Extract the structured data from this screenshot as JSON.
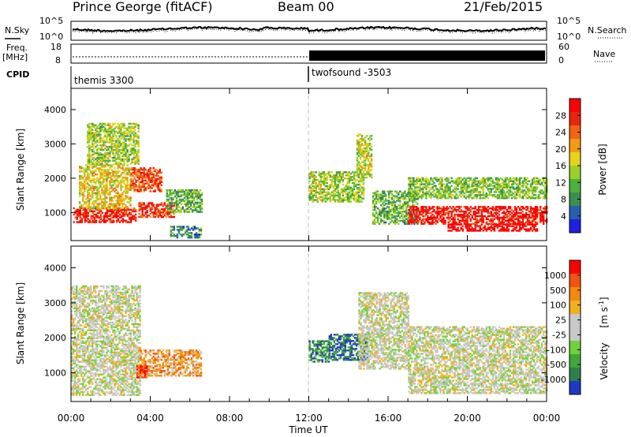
{
  "header": {
    "station": "Prince George (fitACF)",
    "beam": "Beam 00",
    "date": "21/Feb/2015"
  },
  "top_panels": {
    "nsky_label": "N.Sky",
    "nsky_ticks": [
      "10^5",
      "10^0"
    ],
    "nsearch_label": "N.Search",
    "nsearch_ticks": [
      "10^5",
      "10^0"
    ],
    "freq_label_1": "Freq.",
    "freq_label_2": "[MHz]",
    "freq_ticks": [
      "18",
      "8"
    ],
    "nave_label": "Nave",
    "nave_ticks": [
      "60",
      "0"
    ],
    "cpid_label": "CPID",
    "cpid_segments": [
      "themis 3300",
      "twofsound -3503"
    ]
  },
  "chart_data": [
    {
      "type": "heatmap",
      "panel": "power",
      "xlabel": "Time UT",
      "ylabel": "Slant Range [km]",
      "x_ticks": [
        "00:00",
        "04:00",
        "08:00",
        "12:00",
        "16:00",
        "20:00",
        "00:00"
      ],
      "xlim_hours": [
        0,
        24
      ],
      "y_ticks": [
        1000,
        2000,
        3000,
        4000
      ],
      "ylim": [
        180,
        4620
      ],
      "colorbar_label": "Power [dB]",
      "colorbar_ticks": [
        "4",
        "8",
        "12",
        "16",
        "20",
        "24",
        "28"
      ],
      "colorbar_colors": [
        "#1f1fe0",
        "#2a5db0",
        "#3a8f4e",
        "#4cb33a",
        "#9ccf2a",
        "#e6d11b",
        "#f39a17",
        "#f06414",
        "#e8250f",
        "#ff0000"
      ],
      "echo_regions": [
        {
          "t": [
            0.1,
            3.3
          ],
          "r": [
            700,
            1150
          ],
          "level": 0.9
        },
        {
          "t": [
            0.4,
            3.0
          ],
          "r": [
            1100,
            2400
          ],
          "level": 0.55
        },
        {
          "t": [
            0.8,
            3.4
          ],
          "r": [
            2400,
            3600
          ],
          "level": 0.45
        },
        {
          "t": [
            3.0,
            4.6
          ],
          "r": [
            1600,
            2300
          ],
          "level": 0.8
        },
        {
          "t": [
            3.4,
            5.2
          ],
          "r": [
            850,
            1300
          ],
          "level": 0.85
        },
        {
          "t": [
            4.8,
            6.6
          ],
          "r": [
            1000,
            1650
          ],
          "level": 0.35
        },
        {
          "t": [
            5.0,
            6.6
          ],
          "r": [
            250,
            600
          ],
          "level": 0.25
        },
        {
          "t": [
            12.0,
            14.8
          ],
          "r": [
            1300,
            2200
          ],
          "level": 0.45
        },
        {
          "t": [
            14.4,
            15.2
          ],
          "r": [
            2000,
            3300
          ],
          "level": 0.5
        },
        {
          "t": [
            15.2,
            17.5
          ],
          "r": [
            650,
            1600
          ],
          "level": 0.35
        },
        {
          "t": [
            17.0,
            24.0
          ],
          "r": [
            1400,
            2000
          ],
          "level": 0.4
        },
        {
          "t": [
            17.0,
            24.0
          ],
          "r": [
            650,
            1150
          ],
          "level": 0.92
        },
        {
          "t": [
            19.0,
            23.5
          ],
          "r": [
            450,
            650
          ],
          "level": 0.98
        }
      ]
    },
    {
      "type": "heatmap",
      "panel": "velocity",
      "xlabel": "Time UT",
      "ylabel": "Slant Range [km]",
      "x_ticks": [
        "00:00",
        "04:00",
        "08:00",
        "12:00",
        "16:00",
        "20:00",
        "00:00"
      ],
      "xlim_hours": [
        0,
        24
      ],
      "y_ticks": [
        1000,
        2000,
        3000,
        4000
      ],
      "ylim": [
        180,
        4620
      ],
      "colorbar_label_main": "Velocity",
      "colorbar_label_unit": "[m s",
      "colorbar_ticks": [
        "1000",
        "500",
        "100",
        "25",
        "-25",
        "-100",
        "-500",
        "-1000"
      ],
      "colorbar_colors": [
        "#2038c0",
        "#2f7f4c",
        "#3fa73a",
        "#6fd23a",
        "#c8c8c8",
        "#c8c8c8",
        "#f0b020",
        "#f48a12",
        "#ef5510",
        "#ff0000"
      ],
      "echo_regions": [
        {
          "t": [
            0.0,
            3.5
          ],
          "r": [
            350,
            3500
          ],
          "level": 0.5
        },
        {
          "t": [
            3.4,
            6.6
          ],
          "r": [
            900,
            1650
          ],
          "level": 0.7
        },
        {
          "t": [
            3.3,
            3.8
          ],
          "r": [
            850,
            1200
          ],
          "level": 0.95
        },
        {
          "t": [
            12.0,
            13.0
          ],
          "r": [
            1300,
            1900
          ],
          "level": 0.2
        },
        {
          "t": [
            13.0,
            15.0
          ],
          "r": [
            1350,
            2100
          ],
          "level": 0.12
        },
        {
          "t": [
            14.5,
            17.0
          ],
          "r": [
            1100,
            3300
          ],
          "level": 0.5
        },
        {
          "t": [
            17.0,
            24.0
          ],
          "r": [
            400,
            2300
          ],
          "level": 0.5
        }
      ]
    }
  ]
}
